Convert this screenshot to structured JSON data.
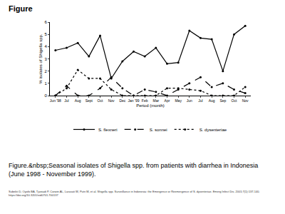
{
  "page": {
    "heading": "Figure",
    "caption": "Figure.&nbsp;Seasonal isolates of Shigella spp. from patients with diarrhea in Indonesia (June 1998 - November 1999).",
    "citation": "Subekti D, Oyofo BA, Tjaniadi P, Corwin AL, Larasati W, Putri M, et al. Shigella spp. Surveillance in Indonesia: the Emergence or Reemergence of S. dysenteriae. Emerg Infect Dis. 2001;7(1):137-140. https://doi.org/10.3201/eid0701.700137"
  },
  "chart_data": {
    "type": "line",
    "x_label": "Period (month)",
    "y_label": "% isolates of Shigella spp.",
    "categories": [
      "Jun '98",
      "Jul",
      "Aug",
      "Sept",
      "Oct",
      "Nov",
      "Dec",
      "Jan '99",
      "Feb",
      "Mar",
      "Apr",
      "May",
      "Jun",
      "Jul",
      "Aug",
      "Sep",
      "Oct",
      "Nov"
    ],
    "series": [
      {
        "name": "S. flexneri",
        "color": "#000000",
        "line_style": "solid",
        "marker": "circle",
        "values": [
          3.7,
          3.9,
          4.3,
          3.2,
          4.9,
          1.4,
          2.8,
          3.6,
          3.2,
          3.9,
          2.6,
          2.7,
          5.3,
          4.7,
          4.6,
          2.0,
          5.0,
          5.7
        ]
      },
      {
        "name": "S. sonnei",
        "color": "#000000",
        "line_style": "dash",
        "marker": "circle",
        "values": [
          0,
          0.8,
          0,
          0,
          0.6,
          1.5,
          0.6,
          0,
          0.5,
          0.3,
          0,
          0.5,
          1.0,
          1.5,
          0.7,
          1.0,
          0.5,
          0.2
        ]
      },
      {
        "name": "S. dysenteriae",
        "color": "#000000",
        "line_style": "dot",
        "marker": "circle",
        "values": [
          0,
          0.6,
          2.1,
          1.4,
          1.4,
          0.5,
          0,
          0,
          0,
          0,
          0.6,
          0.6,
          0.5,
          0.4,
          0,
          0,
          0,
          0.7
        ]
      }
    ],
    "ylim": [
      0,
      6
    ],
    "yticks": [
      0,
      1,
      2,
      3,
      4,
      5,
      6
    ],
    "grid": false,
    "legend": "bottom"
  }
}
